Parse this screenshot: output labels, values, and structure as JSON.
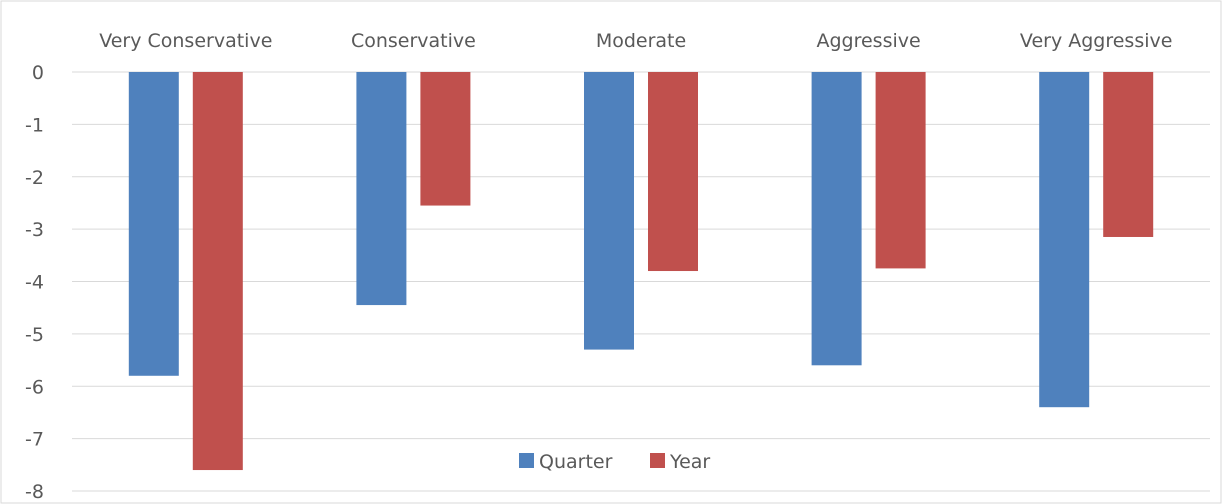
{
  "chart_data": {
    "type": "bar",
    "categories": [
      "Very Conservative",
      "Conservative",
      "Moderate",
      "Aggressive",
      "Very Aggressive"
    ],
    "series": [
      {
        "name": "Quarter",
        "color": "#4f81bd",
        "values": [
          -5.8,
          -4.45,
          -5.3,
          -5.6,
          -6.4
        ]
      },
      {
        "name": "Year",
        "color": "#c0504d",
        "values": [
          -7.6,
          -2.55,
          -3.8,
          -3.75,
          -3.15
        ]
      }
    ],
    "ylim": [
      -8,
      0
    ],
    "yticks": [
      "0",
      "-1",
      "-2",
      "-3",
      "-4",
      "-5",
      "-6",
      "-7",
      "-8"
    ],
    "xaxis_position": "top",
    "grid": true,
    "legend_position": "bottom-center",
    "title": "",
    "xlabel": "",
    "ylabel": ""
  }
}
